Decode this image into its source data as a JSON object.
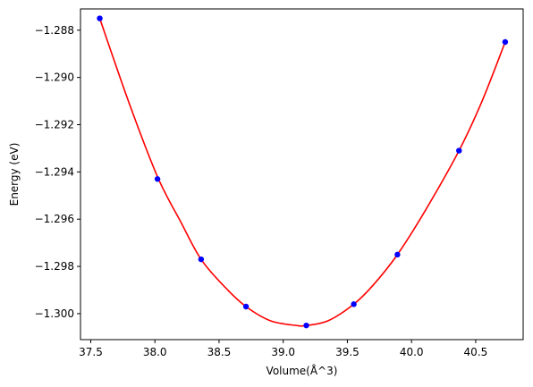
{
  "chart_data": {
    "type": "scatter",
    "title": "",
    "xlabel": "Volume(Å^3)",
    "ylabel": "Energy (eV)",
    "xlim": [
      37.42,
      40.87
    ],
    "ylim": [
      -1.3011,
      -1.2871
    ],
    "xticks": [
      37.5,
      38.0,
      38.5,
      39.0,
      39.5,
      40.0,
      40.5
    ],
    "xtick_labels": [
      "37.5",
      "38.0",
      "38.5",
      "39.0",
      "39.5",
      "40.0",
      "40.5"
    ],
    "yticks": [
      -1.288,
      -1.29,
      -1.292,
      -1.294,
      -1.296,
      -1.298,
      -1.3
    ],
    "ytick_labels": [
      "−1.288",
      "−1.290",
      "−1.292",
      "−1.294",
      "−1.296",
      "−1.298",
      "−1.300"
    ],
    "grid": false,
    "legend": "none",
    "series": [
      {
        "kind": "points",
        "color": "#0000ff",
        "x": [
          37.57,
          38.02,
          38.36,
          38.71,
          39.18,
          39.55,
          39.89,
          40.37,
          40.73
        ],
        "y": [
          -1.2875,
          -1.2943,
          -1.2977,
          -1.2997,
          -1.3005,
          -1.2996,
          -1.2975,
          -1.2931,
          -1.2885
        ]
      },
      {
        "kind": "fit-curve",
        "color": "#ff0000",
        "x": [
          37.57,
          37.8,
          38.02,
          38.2,
          38.36,
          38.55,
          38.71,
          38.9,
          39.1,
          39.18,
          39.35,
          39.55,
          39.7,
          39.89,
          40.1,
          40.37,
          40.55,
          40.73
        ],
        "y": [
          -1.2875,
          -1.2911,
          -1.2942,
          -1.2961,
          -1.2977,
          -1.2989,
          -1.2997,
          -1.3003,
          -1.3005,
          -1.3005,
          -1.3003,
          -1.2996,
          -1.2988,
          -1.2975,
          -1.2957,
          -1.2931,
          -1.291,
          -1.2885
        ]
      }
    ]
  }
}
